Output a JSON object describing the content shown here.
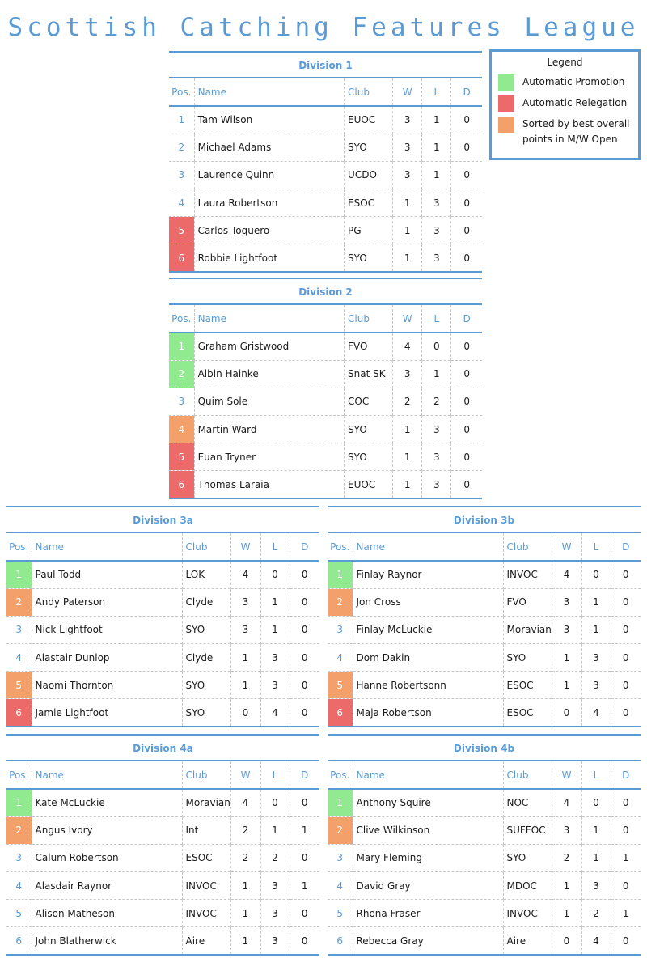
{
  "title": "Scottish Catching Features League",
  "legend": {
    "title": "Legend",
    "items": [
      {
        "color": "#91ea8f",
        "label": "Automatic Promotion"
      },
      {
        "color": "#ec6a6a",
        "label": "Automatic Relegation"
      },
      {
        "color": "#f4a06a",
        "label": "Sorted by best overall points in M/W Open"
      }
    ]
  },
  "columns": [
    "Pos.",
    "Name",
    "Club",
    "W",
    "L",
    "D"
  ],
  "divisions": [
    {
      "title": "Division 1",
      "rows": [
        {
          "pos": "1",
          "name": "Tam Wilson",
          "club": "EUOC",
          "w": "3",
          "l": "1",
          "d": "0",
          "mark": ""
        },
        {
          "pos": "2",
          "name": "Michael Adams",
          "club": "SYO",
          "w": "3",
          "l": "1",
          "d": "0",
          "mark": ""
        },
        {
          "pos": "3",
          "name": "Laurence Quinn",
          "club": "UCDO",
          "w": "3",
          "l": "1",
          "d": "0",
          "mark": ""
        },
        {
          "pos": "4",
          "name": "Laura Robertson",
          "club": "ESOC",
          "w": "1",
          "l": "3",
          "d": "0",
          "mark": ""
        },
        {
          "pos": "5",
          "name": "Carlos Toquero",
          "club": "PG",
          "w": "1",
          "l": "3",
          "d": "0",
          "mark": "releg"
        },
        {
          "pos": "6",
          "name": "Robbie Lightfoot",
          "club": "SYO",
          "w": "1",
          "l": "3",
          "d": "0",
          "mark": "releg"
        }
      ]
    },
    {
      "title": "Division 2",
      "rows": [
        {
          "pos": "1",
          "name": "Graham Gristwood",
          "club": "FVO",
          "w": "4",
          "l": "0",
          "d": "0",
          "mark": "promo"
        },
        {
          "pos": "2",
          "name": "Albin Hainke",
          "club": "Snat SK",
          "w": "3",
          "l": "1",
          "d": "0",
          "mark": "promo"
        },
        {
          "pos": "3",
          "name": "Quim Sole",
          "club": "COC",
          "w": "2",
          "l": "2",
          "d": "0",
          "mark": ""
        },
        {
          "pos": "4",
          "name": "Martin Ward",
          "club": "SYO",
          "w": "1",
          "l": "3",
          "d": "0",
          "mark": "sorted"
        },
        {
          "pos": "5",
          "name": "Euan Tryner",
          "club": "SYO",
          "w": "1",
          "l": "3",
          "d": "0",
          "mark": "releg"
        },
        {
          "pos": "6",
          "name": "Thomas Laraia",
          "club": "EUOC",
          "w": "1",
          "l": "3",
          "d": "0",
          "mark": "releg"
        }
      ]
    },
    {
      "title": "Division 3a",
      "rows": [
        {
          "pos": "1",
          "name": "Paul Todd",
          "club": "LOK",
          "w": "4",
          "l": "0",
          "d": "0",
          "mark": "promo"
        },
        {
          "pos": "2",
          "name": "Andy Paterson",
          "club": "Clyde",
          "w": "3",
          "l": "1",
          "d": "0",
          "mark": "sorted"
        },
        {
          "pos": "3",
          "name": "Nick Lightfoot",
          "club": "SYO",
          "w": "3",
          "l": "1",
          "d": "0",
          "mark": ""
        },
        {
          "pos": "4",
          "name": "Alastair Dunlop",
          "club": "Clyde",
          "w": "1",
          "l": "3",
          "d": "0",
          "mark": ""
        },
        {
          "pos": "5",
          "name": "Naomi Thornton",
          "club": "SYO",
          "w": "1",
          "l": "3",
          "d": "0",
          "mark": "sorted"
        },
        {
          "pos": "6",
          "name": "Jamie Lightfoot",
          "club": "SYO",
          "w": "0",
          "l": "4",
          "d": "0",
          "mark": "releg"
        }
      ]
    },
    {
      "title": "Division 3b",
      "rows": [
        {
          "pos": "1",
          "name": "Finlay Raynor",
          "club": "INVOC",
          "w": "4",
          "l": "0",
          "d": "0",
          "mark": "promo"
        },
        {
          "pos": "2",
          "name": "Jon Cross",
          "club": "FVO",
          "w": "3",
          "l": "1",
          "d": "0",
          "mark": "sorted"
        },
        {
          "pos": "3",
          "name": "Finlay McLuckie",
          "club": "Moravian",
          "w": "3",
          "l": "1",
          "d": "0",
          "mark": ""
        },
        {
          "pos": "4",
          "name": "Dom Dakin",
          "club": "SYO",
          "w": "1",
          "l": "3",
          "d": "0",
          "mark": ""
        },
        {
          "pos": "5",
          "name": "Hanne Robertsonn",
          "club": "ESOC",
          "w": "1",
          "l": "3",
          "d": "0",
          "mark": "sorted"
        },
        {
          "pos": "6",
          "name": "Maja Robertson",
          "club": "ESOC",
          "w": "0",
          "l": "4",
          "d": "0",
          "mark": "releg"
        }
      ]
    },
    {
      "title": "Division 4a",
      "rows": [
        {
          "pos": "1",
          "name": "Kate McLuckie",
          "club": "Moravian",
          "w": "4",
          "l": "0",
          "d": "0",
          "mark": "promo"
        },
        {
          "pos": "2",
          "name": "Angus Ivory",
          "club": "Int",
          "w": "2",
          "l": "1",
          "d": "1",
          "mark": "sorted"
        },
        {
          "pos": "3",
          "name": "Calum Robertson",
          "club": "ESOC",
          "w": "2",
          "l": "2",
          "d": "0",
          "mark": ""
        },
        {
          "pos": "4",
          "name": "Alasdair Raynor",
          "club": "INVOC",
          "w": "1",
          "l": "3",
          "d": "1",
          "mark": ""
        },
        {
          "pos": "5",
          "name": "Alison Matheson",
          "club": "INVOC",
          "w": "1",
          "l": "3",
          "d": "0",
          "mark": ""
        },
        {
          "pos": "6",
          "name": "John Blatherwick",
          "club": "Aire",
          "w": "1",
          "l": "3",
          "d": "0",
          "mark": ""
        }
      ]
    },
    {
      "title": "Division 4b",
      "rows": [
        {
          "pos": "1",
          "name": "Anthony Squire",
          "club": "NOC",
          "w": "4",
          "l": "0",
          "d": "0",
          "mark": "promo"
        },
        {
          "pos": "2",
          "name": "Clive Wilkinson",
          "club": "SUFFOC",
          "w": "3",
          "l": "1",
          "d": "0",
          "mark": "sorted"
        },
        {
          "pos": "3",
          "name": "Mary Fleming",
          "club": "SYO",
          "w": "2",
          "l": "1",
          "d": "1",
          "mark": ""
        },
        {
          "pos": "4",
          "name": "David Gray",
          "club": "MDOC",
          "w": "1",
          "l": "3",
          "d": "0",
          "mark": ""
        },
        {
          "pos": "5",
          "name": "Rhona Fraser",
          "club": "INVOC",
          "w": "1",
          "l": "2",
          "d": "1",
          "mark": ""
        },
        {
          "pos": "6",
          "name": "Rebecca Gray",
          "club": "Aire",
          "w": "0",
          "l": "4",
          "d": "0",
          "mark": ""
        }
      ]
    }
  ]
}
